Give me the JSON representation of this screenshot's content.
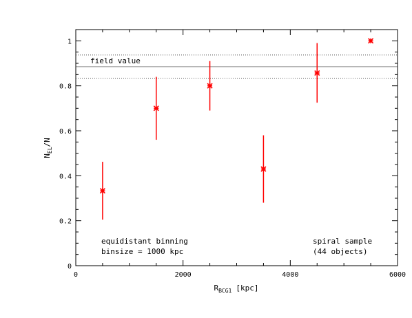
{
  "chart_data": {
    "type": "scatter",
    "xlabel_main": "R",
    "xlabel_sub": "BCG1",
    "xlabel_unit": "[kpc]",
    "ylabel_main": "N",
    "ylabel_sub": "EL",
    "ylabel_tail": "/N",
    "xlim": [
      0,
      6000
    ],
    "ylim": [
      0,
      1.05
    ],
    "x_ticks": [
      0,
      2000,
      4000,
      6000
    ],
    "x_tick_labels": [
      "0",
      "2000",
      "4000",
      "6000"
    ],
    "y_ticks": [
      0,
      0.2,
      0.4,
      0.6,
      0.8,
      1
    ],
    "y_tick_labels": [
      "0",
      "0.2",
      "0.4",
      "0.6",
      "0.8",
      "1"
    ],
    "points": [
      {
        "x": 500,
        "y": 0.333,
        "y_low": 0.205,
        "y_high": 0.462
      },
      {
        "x": 1500,
        "y": 0.7,
        "y_low": 0.56,
        "y_high": 0.84
      },
      {
        "x": 2500,
        "y": 0.8,
        "y_low": 0.69,
        "y_high": 0.91
      },
      {
        "x": 3500,
        "y": 0.43,
        "y_low": 0.28,
        "y_high": 0.58
      },
      {
        "x": 4500,
        "y": 0.857,
        "y_low": 0.725,
        "y_high": 0.99
      },
      {
        "x": 5500,
        "y": 1.0,
        "y_low": 1.0,
        "y_high": 1.0
      }
    ],
    "field_value": 0.885,
    "field_low": 0.833,
    "field_high": 0.937,
    "field_label": "field value",
    "annotation_left": [
      "equidistant binning",
      "binsize = 1000 kpc"
    ],
    "annotation_right": [
      "spiral sample",
      "(44 objects)"
    ],
    "marker_color": "#ff0000",
    "field_line_color": "#888888",
    "grid": false
  }
}
